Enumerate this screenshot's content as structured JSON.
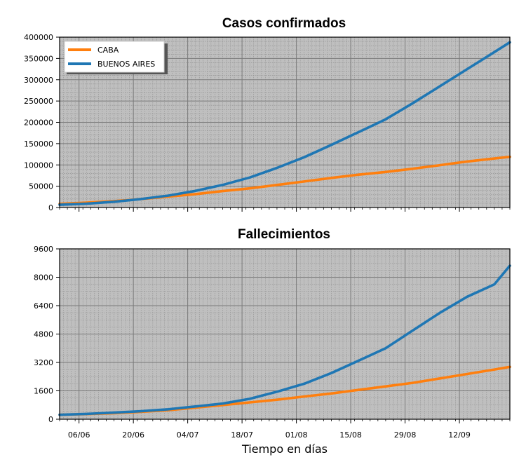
{
  "colors": {
    "caba": "#ff7f0e",
    "buenos_aires": "#1f77b4",
    "plot_bg": "#bfbfbf",
    "major_grid": "#7a7a7a",
    "minor_grid": "#8e8e8e"
  },
  "xlabel": "Tiempo en días",
  "x_ticks": [
    "06/06",
    "20/06",
    "04/07",
    "18/07",
    "01/08",
    "15/08",
    "29/08",
    "12/09"
  ],
  "chart_data": [
    {
      "type": "line",
      "title": "Casos confirmados",
      "xlabel": "Tiempo en días",
      "ylabel": "",
      "ylim": [
        0,
        400000
      ],
      "yticks": [
        0,
        50000,
        100000,
        150000,
        200000,
        250000,
        300000,
        350000,
        400000
      ],
      "ytick_labels": [
        "0",
        "50000",
        "100000",
        "150000",
        "200000",
        "250000",
        "300000",
        "350000",
        "400000"
      ],
      "legend": {
        "position": "top-left",
        "entries": [
          "CABA",
          "BUENOS AIRES"
        ]
      },
      "grid": true,
      "x": [
        "01/06",
        "08/06",
        "15/06",
        "22/06",
        "29/06",
        "06/07",
        "13/07",
        "20/07",
        "27/07",
        "03/08",
        "10/08",
        "17/08",
        "24/08",
        "31/08",
        "07/09",
        "14/09",
        "21/09",
        "25/09"
      ],
      "series": [
        {
          "name": "CABA",
          "values": [
            8500,
            11500,
            15000,
            20000,
            25500,
            31500,
            38500,
            45000,
            53000,
            61000,
            69500,
            77000,
            83500,
            91000,
            99500,
            108000,
            115000,
            119000
          ]
        },
        {
          "name": "BUENOS AIRES",
          "values": [
            6500,
            9000,
            13500,
            20000,
            28000,
            39000,
            53000,
            70500,
            93000,
            118000,
            147000,
            177000,
            207000,
            245000,
            285000,
            325000,
            365000,
            388000
          ]
        }
      ]
    },
    {
      "type": "line",
      "title": "Fallecimientos",
      "xlabel": "Tiempo en días",
      "ylabel": "",
      "ylim": [
        0,
        9600
      ],
      "yticks": [
        0,
        1600,
        3200,
        4800,
        6400,
        8000,
        9600
      ],
      "ytick_labels": [
        "0",
        "1600",
        "3200",
        "4800",
        "6400",
        "8000",
        "9600"
      ],
      "grid": true,
      "x": [
        "01/06",
        "08/06",
        "15/06",
        "22/06",
        "29/06",
        "06/07",
        "13/07",
        "20/07",
        "27/07",
        "03/08",
        "10/08",
        "17/08",
        "24/08",
        "31/08",
        "07/09",
        "14/09",
        "21/09",
        "25/09"
      ],
      "series": [
        {
          "name": "CABA",
          "values": [
            250,
            290,
            340,
            420,
            510,
            650,
            800,
            950,
            1100,
            1280,
            1450,
            1650,
            1850,
            2050,
            2300,
            2550,
            2800,
            2950
          ]
        },
        {
          "name": "BUENOS AIRES",
          "values": [
            250,
            300,
            370,
            450,
            560,
            720,
            880,
            1150,
            1550,
            2000,
            2600,
            3300,
            4000,
            5000,
            6000,
            6900,
            7600,
            8650
          ]
        }
      ]
    }
  ]
}
